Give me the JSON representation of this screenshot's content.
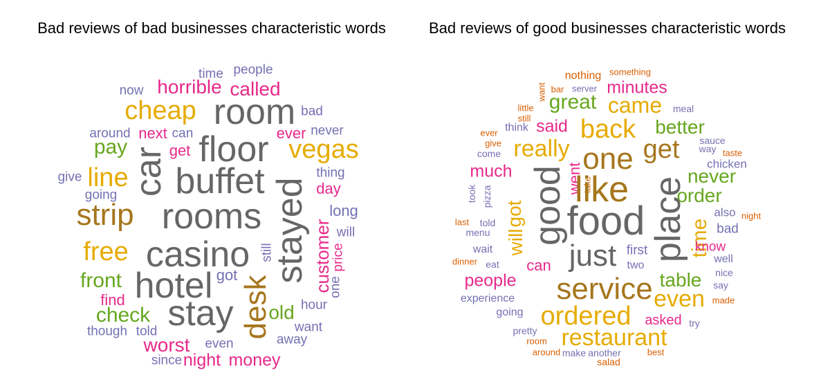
{
  "colors": {
    "gray": "#666666",
    "gold": "#E6AB02",
    "brown": "#A6761D",
    "pink": "#E7298A",
    "green": "#66A61E",
    "purple": "#7570B3",
    "orange": "#D95F02"
  },
  "panels": [
    {
      "title": "Bad reviews of bad businesses characteristic words",
      "words": [
        {
          "text": "time",
          "color": "purple"
        },
        {
          "text": "people",
          "color": "purple"
        },
        {
          "text": "now",
          "color": "purple"
        },
        {
          "text": "horrible",
          "color": "pink"
        },
        {
          "text": "called",
          "color": "pink"
        },
        {
          "text": "cheap",
          "color": "gold"
        },
        {
          "text": "room",
          "color": "gray"
        },
        {
          "text": "bad",
          "color": "purple"
        },
        {
          "text": "around",
          "color": "purple"
        },
        {
          "text": "next",
          "color": "pink"
        },
        {
          "text": "can",
          "color": "purple"
        },
        {
          "text": "ever",
          "color": "pink"
        },
        {
          "text": "never",
          "color": "purple"
        },
        {
          "text": "pay",
          "color": "green"
        },
        {
          "text": "car",
          "color": "gray"
        },
        {
          "text": "floor",
          "color": "gray"
        },
        {
          "text": "get",
          "color": "pink"
        },
        {
          "text": "vegas",
          "color": "gold"
        },
        {
          "text": "line",
          "color": "gold"
        },
        {
          "text": "buffet",
          "color": "gray"
        },
        {
          "text": "thing",
          "color": "purple"
        },
        {
          "text": "give",
          "color": "purple"
        },
        {
          "text": "day",
          "color": "pink"
        },
        {
          "text": "going",
          "color": "purple"
        },
        {
          "text": "strip",
          "color": "brown"
        },
        {
          "text": "rooms",
          "color": "gray"
        },
        {
          "text": "stayed",
          "color": "gray"
        },
        {
          "text": "long",
          "color": "purple"
        },
        {
          "text": "will",
          "color": "purple"
        },
        {
          "text": "customer",
          "color": "pink"
        },
        {
          "text": "price",
          "color": "pink"
        },
        {
          "text": "free",
          "color": "gold"
        },
        {
          "text": "casino",
          "color": "gray"
        },
        {
          "text": "still",
          "color": "purple"
        },
        {
          "text": "front",
          "color": "green"
        },
        {
          "text": "hotel",
          "color": "gray"
        },
        {
          "text": "got",
          "color": "purple"
        },
        {
          "text": "desk",
          "color": "brown"
        },
        {
          "text": "one",
          "color": "purple"
        },
        {
          "text": "find",
          "color": "pink"
        },
        {
          "text": "hour",
          "color": "purple"
        },
        {
          "text": "check",
          "color": "green"
        },
        {
          "text": "stay",
          "color": "gray"
        },
        {
          "text": "old",
          "color": "green"
        },
        {
          "text": "want",
          "color": "purple"
        },
        {
          "text": "though",
          "color": "purple"
        },
        {
          "text": "told",
          "color": "purple"
        },
        {
          "text": "away",
          "color": "purple"
        },
        {
          "text": "worst",
          "color": "pink"
        },
        {
          "text": "even",
          "color": "purple"
        },
        {
          "text": "since",
          "color": "purple"
        },
        {
          "text": "night",
          "color": "pink"
        },
        {
          "text": "money",
          "color": "pink"
        }
      ]
    },
    {
      "title": "Bad reviews of good businesses characteristic words",
      "words": [
        {
          "text": "nothing",
          "color": "orange"
        },
        {
          "text": "something",
          "color": "orange"
        },
        {
          "text": "want",
          "color": "orange"
        },
        {
          "text": "bar",
          "color": "orange"
        },
        {
          "text": "server",
          "color": "purple"
        },
        {
          "text": "minutes",
          "color": "pink"
        },
        {
          "text": "little",
          "color": "orange"
        },
        {
          "text": "still",
          "color": "orange"
        },
        {
          "text": "great",
          "color": "green"
        },
        {
          "text": "came",
          "color": "gold"
        },
        {
          "text": "meal",
          "color": "purple"
        },
        {
          "text": "ever",
          "color": "orange"
        },
        {
          "text": "think",
          "color": "purple"
        },
        {
          "text": "said",
          "color": "pink"
        },
        {
          "text": "back",
          "color": "gold"
        },
        {
          "text": "better",
          "color": "green"
        },
        {
          "text": "give",
          "color": "orange"
        },
        {
          "text": "sauce",
          "color": "purple"
        },
        {
          "text": "come",
          "color": "purple"
        },
        {
          "text": "really",
          "color": "gold"
        },
        {
          "text": "one",
          "color": "brown"
        },
        {
          "text": "get",
          "color": "brown"
        },
        {
          "text": "way",
          "color": "purple"
        },
        {
          "text": "taste",
          "color": "orange"
        },
        {
          "text": "chicken",
          "color": "purple"
        },
        {
          "text": "much",
          "color": "pink"
        },
        {
          "text": "good",
          "color": "gray"
        },
        {
          "text": "went",
          "color": "pink"
        },
        {
          "text": "never",
          "color": "green"
        },
        {
          "text": "take",
          "color": "orange"
        },
        {
          "text": "like",
          "color": "brown"
        },
        {
          "text": "took",
          "color": "purple"
        },
        {
          "text": "pizza",
          "color": "purple"
        },
        {
          "text": "order",
          "color": "green"
        },
        {
          "text": "place",
          "color": "gray"
        },
        {
          "text": "got",
          "color": "gold"
        },
        {
          "text": "also",
          "color": "purple"
        },
        {
          "text": "night",
          "color": "orange"
        },
        {
          "text": "will",
          "color": "gold"
        },
        {
          "text": "food",
          "color": "gray"
        },
        {
          "text": "time",
          "color": "gold"
        },
        {
          "text": "last",
          "color": "orange"
        },
        {
          "text": "told",
          "color": "purple"
        },
        {
          "text": "bad",
          "color": "purple"
        },
        {
          "text": "menu",
          "color": "purple"
        },
        {
          "text": "know",
          "color": "pink"
        },
        {
          "text": "just",
          "color": "gray"
        },
        {
          "text": "first",
          "color": "purple"
        },
        {
          "text": "wait",
          "color": "purple"
        },
        {
          "text": "well",
          "color": "purple"
        },
        {
          "text": "dinner",
          "color": "orange"
        },
        {
          "text": "eat",
          "color": "purple"
        },
        {
          "text": "can",
          "color": "pink"
        },
        {
          "text": "two",
          "color": "purple"
        },
        {
          "text": "nice",
          "color": "purple"
        },
        {
          "text": "people",
          "color": "pink"
        },
        {
          "text": "table",
          "color": "green"
        },
        {
          "text": "say",
          "color": "purple"
        },
        {
          "text": "service",
          "color": "brown"
        },
        {
          "text": "experience",
          "color": "purple"
        },
        {
          "text": "even",
          "color": "gold"
        },
        {
          "text": "made",
          "color": "orange"
        },
        {
          "text": "going",
          "color": "purple"
        },
        {
          "text": "ordered",
          "color": "gold"
        },
        {
          "text": "asked",
          "color": "pink"
        },
        {
          "text": "try",
          "color": "purple"
        },
        {
          "text": "pretty",
          "color": "purple"
        },
        {
          "text": "room",
          "color": "orange"
        },
        {
          "text": "restaurant",
          "color": "gold"
        },
        {
          "text": "around",
          "color": "orange"
        },
        {
          "text": "make",
          "color": "purple"
        },
        {
          "text": "another",
          "color": "purple"
        },
        {
          "text": "best",
          "color": "orange"
        },
        {
          "text": "salad",
          "color": "orange"
        }
      ]
    }
  ]
}
